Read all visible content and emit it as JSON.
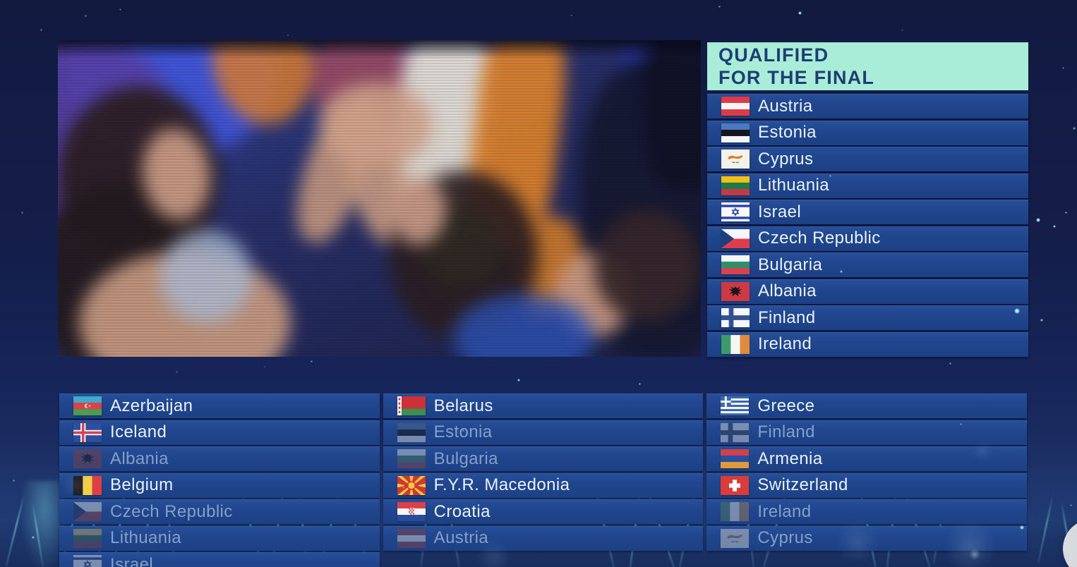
{
  "header": {
    "line1": "QUALIFIED",
    "line2": "FOR THE FINAL"
  },
  "qualified": {
    "items": [
      {
        "name": "Austria",
        "flag": "austria"
      },
      {
        "name": "Estonia",
        "flag": "estonia"
      },
      {
        "name": "Cyprus",
        "flag": "cyprus"
      },
      {
        "name": "Lithuania",
        "flag": "lithuania"
      },
      {
        "name": "Israel",
        "flag": "israel"
      },
      {
        "name": "Czech Republic",
        "flag": "czech"
      },
      {
        "name": "Bulgaria",
        "flag": "bulgaria"
      },
      {
        "name": "Albania",
        "flag": "albania"
      },
      {
        "name": "Finland",
        "flag": "finland"
      },
      {
        "name": "Ireland",
        "flag": "ireland"
      }
    ]
  },
  "bottom": {
    "columns": [
      {
        "items": [
          {
            "name": "Azerbaijan",
            "flag": "azerbaijan",
            "dimmed": false
          },
          {
            "name": "Iceland",
            "flag": "iceland",
            "dimmed": false
          },
          {
            "name": "Albania",
            "flag": "albania",
            "dimmed": true
          },
          {
            "name": "Belgium",
            "flag": "belgium",
            "dimmed": false
          },
          {
            "name": "Czech Republic",
            "flag": "czech",
            "dimmed": true
          },
          {
            "name": "Lithuania",
            "flag": "lithuania",
            "dimmed": true
          },
          {
            "name": "Israel",
            "flag": "israel",
            "dimmed": true
          }
        ]
      },
      {
        "items": [
          {
            "name": "Belarus",
            "flag": "belarus",
            "dimmed": false
          },
          {
            "name": "Estonia",
            "flag": "estonia",
            "dimmed": true
          },
          {
            "name": "Bulgaria",
            "flag": "bulgaria",
            "dimmed": true
          },
          {
            "name": "F.Y.R. Macedonia",
            "flag": "macedonia",
            "dimmed": false
          },
          {
            "name": "Croatia",
            "flag": "croatia",
            "dimmed": false
          },
          {
            "name": "Austria",
            "flag": "austria",
            "dimmed": true
          }
        ]
      },
      {
        "items": [
          {
            "name": "Greece",
            "flag": "greece",
            "dimmed": false
          },
          {
            "name": "Finland",
            "flag": "finland",
            "dimmed": true
          },
          {
            "name": "Armenia",
            "flag": "armenia",
            "dimmed": false
          },
          {
            "name": "Switzerland",
            "flag": "switzerland",
            "dimmed": false
          },
          {
            "name": "Ireland",
            "flag": "ireland",
            "dimmed": true
          },
          {
            "name": "Cyprus",
            "flag": "cyprus",
            "dimmed": true
          }
        ]
      }
    ]
  },
  "colors": {
    "accent_mint": "#A9EDD8",
    "header_text": "#1D3E72",
    "row_blue": "#21478E",
    "text_bright": "#E9F1FB",
    "text_dimmed": "#84A0C9",
    "background": "#141D48"
  }
}
